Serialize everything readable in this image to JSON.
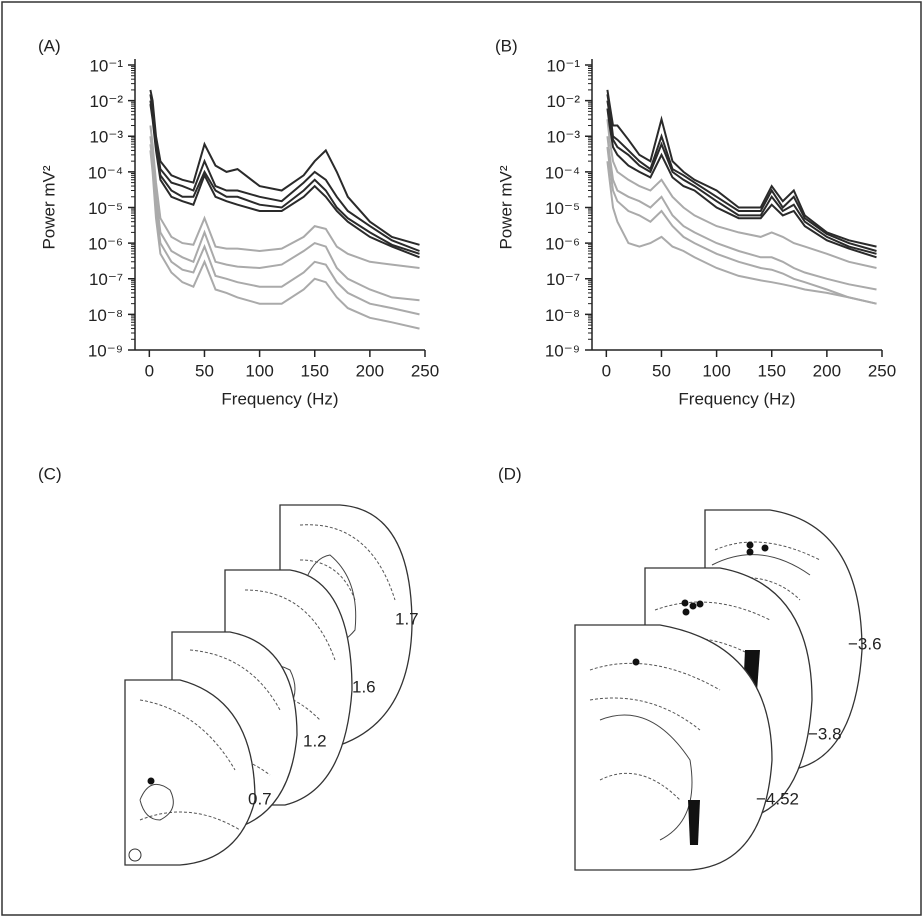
{
  "chart_data": [
    {
      "type": "line",
      "panel_label": "(A)",
      "xlabel": "Frequency (Hz)",
      "ylabel": "Power mV²",
      "log_y": true,
      "xlim": [
        -13,
        250
      ],
      "ylim": [
        1e-09,
        0.1
      ],
      "xticks": [
        0,
        50,
        100,
        150,
        200,
        250
      ],
      "yticks": [
        {
          "value": 1e-09,
          "label": "10⁻⁹"
        },
        {
          "value": 1e-08,
          "label": "10⁻⁸"
        },
        {
          "value": 1e-07,
          "label": "10⁻⁷"
        },
        {
          "value": 1e-06,
          "label": "10⁻⁶"
        },
        {
          "value": 1e-05,
          "label": "10⁻⁵"
        },
        {
          "value": 0.0001,
          "label": "10⁻⁴"
        },
        {
          "value": 0.001,
          "label": "10⁻³"
        },
        {
          "value": 0.01,
          "label": "10⁻²"
        },
        {
          "value": 0.1,
          "label": "10⁻¹"
        }
      ],
      "x": [
        1,
        3,
        6,
        10,
        20,
        30,
        40,
        50,
        60,
        70,
        80,
        100,
        120,
        140,
        150,
        160,
        170,
        180,
        200,
        220,
        245
      ],
      "series": [
        {
          "color": "#2a2a2a",
          "values": [
            0.02,
            0.01,
            0.001,
            0.0002,
            8e-05,
            6e-05,
            5e-05,
            0.0006,
            0.00015,
            0.0001,
            0.00012,
            4e-05,
            3e-05,
            8e-05,
            0.0002,
            0.0004,
            0.0001,
            2e-05,
            4e-06,
            1.5e-06,
            9e-07
          ]
        },
        {
          "color": "#2a2a2a",
          "values": [
            0.015,
            0.006,
            0.0007,
            0.00012,
            5e-05,
            4e-05,
            3e-05,
            0.0002,
            4e-05,
            3e-05,
            3e-05,
            2e-05,
            1.5e-05,
            5e-05,
            0.0001,
            6e-05,
            2e-05,
            8e-06,
            3e-06,
            1.2e-06,
            6e-07
          ]
        },
        {
          "color": "#2a2a2a",
          "values": [
            0.01,
            0.004,
            0.0005,
            8e-05,
            3e-05,
            2e-05,
            2e-05,
            0.0001,
            3e-05,
            2e-05,
            2e-05,
            1.2e-05,
            1e-05,
            3e-05,
            6e-05,
            3e-05,
            1e-05,
            5e-06,
            2e-06,
            9e-07,
            5e-07
          ]
        },
        {
          "color": "#2a2a2a",
          "values": [
            0.008,
            0.003,
            0.0004,
            6e-05,
            2e-05,
            1.5e-05,
            1.2e-05,
            8e-05,
            2e-05,
            1.5e-05,
            1.2e-05,
            8e-06,
            8e-06,
            2e-05,
            4e-05,
            2e-05,
            8e-06,
            4e-06,
            1.5e-06,
            8e-07,
            4e-07
          ]
        },
        {
          "color": "#aaaaaa",
          "values": [
            0.002,
            0.0006,
            5e-05,
            5e-06,
            1.5e-06,
            1e-06,
            9e-07,
            5e-06,
            8e-07,
            7e-07,
            7e-07,
            6e-07,
            7e-07,
            1.5e-06,
            3e-06,
            2.5e-06,
            8e-07,
            5e-07,
            3e-07,
            2.5e-07,
            2e-07
          ]
        },
        {
          "color": "#aaaaaa",
          "values": [
            0.001,
            0.0003,
            2e-05,
            2e-06,
            6e-07,
            4e-07,
            3e-07,
            2e-06,
            3e-07,
            2.5e-07,
            2.2e-07,
            2e-07,
            2.5e-07,
            6e-07,
            1e-06,
            8e-07,
            2e-07,
            1e-07,
            5e-08,
            3e-08,
            2.5e-08
          ]
        },
        {
          "color": "#aaaaaa",
          "values": [
            0.0006,
            0.0002,
            1e-05,
            1e-06,
            3e-07,
            1.8e-07,
            1.5e-07,
            8e-07,
            1.2e-07,
            1e-07,
            8e-08,
            6e-08,
            6e-08,
            1.5e-07,
            3e-07,
            2.5e-07,
            8e-08,
            4e-08,
            2e-08,
            1.5e-08,
            1e-08
          ]
        },
        {
          "color": "#aaaaaa",
          "values": [
            0.0004,
            0.0001,
            5e-06,
            5e-07,
            1.5e-07,
            8e-08,
            6e-08,
            3e-07,
            5e-08,
            4e-08,
            3e-08,
            2e-08,
            2e-08,
            5e-08,
            1e-07,
            8e-08,
            3e-08,
            1.5e-08,
            8e-09,
            6e-09,
            4e-09
          ]
        }
      ]
    },
    {
      "type": "line",
      "panel_label": "(B)",
      "xlabel": "Frequency (Hz)",
      "ylabel": "Power mV²",
      "log_y": true,
      "xlim": [
        -13,
        250
      ],
      "ylim": [
        1e-09,
        0.1
      ],
      "xticks": [
        0,
        50,
        100,
        150,
        200,
        250
      ],
      "yticks": [
        {
          "value": 1e-09,
          "label": "10⁻⁹"
        },
        {
          "value": 1e-08,
          "label": "10⁻⁸"
        },
        {
          "value": 1e-07,
          "label": "10⁻⁷"
        },
        {
          "value": 1e-06,
          "label": "10⁻⁶"
        },
        {
          "value": 1e-05,
          "label": "10⁻⁵"
        },
        {
          "value": 0.0001,
          "label": "10⁻⁴"
        },
        {
          "value": 0.001,
          "label": "10⁻³"
        },
        {
          "value": 0.01,
          "label": "10⁻²"
        },
        {
          "value": 0.1,
          "label": "10⁻¹"
        }
      ],
      "x": [
        1,
        3,
        6,
        10,
        20,
        30,
        40,
        50,
        60,
        70,
        80,
        100,
        120,
        140,
        150,
        160,
        170,
        180,
        200,
        220,
        245
      ],
      "series": [
        {
          "color": "#2a2a2a",
          "values": [
            0.02,
            0.008,
            0.002,
            0.002,
            0.0008,
            0.0003,
            0.0002,
            0.003,
            0.0002,
            0.0001,
            6e-05,
            3e-05,
            1e-05,
            1e-05,
            4e-05,
            1.5e-05,
            3e-05,
            6e-06,
            2e-06,
            1.2e-06,
            8e-07
          ]
        },
        {
          "color": "#2a2a2a",
          "values": [
            0.015,
            0.006,
            0.001,
            0.0008,
            0.0004,
            0.0002,
            0.00012,
            0.001,
            0.00012,
            8e-05,
            5e-05,
            2e-05,
            8e-06,
            8e-06,
            3e-05,
            1e-05,
            2e-05,
            5e-06,
            1.8e-06,
            1e-06,
            6e-07
          ]
        },
        {
          "color": "#2a2a2a",
          "values": [
            0.01,
            0.004,
            0.0008,
            0.0005,
            0.0003,
            0.00015,
            0.0001,
            0.0006,
            0.0001,
            6e-05,
            4e-05,
            1.5e-05,
            6e-06,
            6e-06,
            2e-05,
            8e-06,
            1.2e-05,
            4e-06,
            1.5e-06,
            8e-07,
            5e-07
          ]
        },
        {
          "color": "#2a2a2a",
          "values": [
            0.006,
            0.002,
            0.0005,
            0.0003,
            0.00015,
            0.0001,
            7e-05,
            0.0003,
            7e-05,
            4e-05,
            3e-05,
            1e-05,
            5e-06,
            5e-06,
            1.2e-05,
            6e-06,
            8e-06,
            3e-06,
            1.2e-06,
            7e-07,
            4e-07
          ]
        },
        {
          "color": "#aaaaaa",
          "values": [
            0.003,
            0.0008,
            0.0002,
            0.0001,
            6e-05,
            4e-05,
            3e-05,
            6e-05,
            2e-05,
            1e-05,
            6e-06,
            3e-06,
            2e-06,
            1.5e-06,
            2e-06,
            1.5e-06,
            1e-06,
            8e-07,
            5e-07,
            3e-07,
            2e-07
          ]
        },
        {
          "color": "#aaaaaa",
          "values": [
            0.001,
            0.0003,
            6e-05,
            3e-05,
            2e-05,
            1.5e-05,
            1e-05,
            2e-05,
            6e-06,
            3e-06,
            2e-06,
            1e-06,
            6e-07,
            4e-07,
            4e-07,
            3e-07,
            2e-07,
            1.5e-07,
            1e-07,
            7e-08,
            5e-08
          ]
        },
        {
          "color": "#aaaaaa",
          "values": [
            0.0005,
            0.00015,
            3e-05,
            1.5e-05,
            8e-06,
            6e-06,
            4e-06,
            8e-06,
            3e-06,
            1.5e-06,
            1e-06,
            5e-07,
            3e-07,
            2e-07,
            1.8e-07,
            1.4e-07,
            1e-07,
            8e-08,
            5e-08,
            3e-08,
            2e-08
          ]
        },
        {
          "color": "#aaaaaa",
          "values": [
            0.0002,
            6e-05,
            1e-05,
            4e-06,
            1e-06,
            8e-07,
            1e-06,
            1.5e-06,
            8e-07,
            6e-07,
            4e-07,
            2e-07,
            1.2e-07,
            9e-08,
            8e-08,
            7e-08,
            6e-08,
            5e-08,
            4e-08,
            3e-08,
            2e-08
          ]
        }
      ]
    }
  ],
  "diagrams": [
    {
      "panel_label": "(C)",
      "slices": [
        "1.7",
        "1.6",
        "1.2",
        "0.7"
      ]
    },
    {
      "panel_label": "(D)",
      "slices": [
        "−3.6",
        "−3.8",
        "−4.52"
      ]
    }
  ]
}
